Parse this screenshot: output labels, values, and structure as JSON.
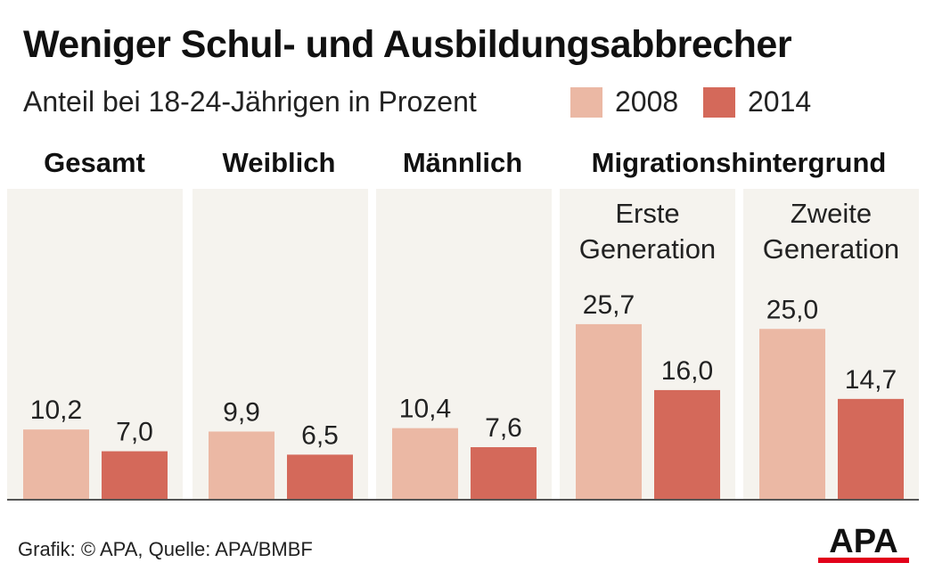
{
  "header": {
    "title": "Weniger Schul- und Ausbildungsabbrecher",
    "subtitle": "Anteil bei 18-24-Jährigen in Prozent"
  },
  "legend": [
    {
      "label": "2008",
      "color": "#ebb8a4"
    },
    {
      "label": "2014",
      "color": "#d4695a"
    }
  ],
  "footer": {
    "source": "Grafik: © APA, Quelle: APA/BMBF",
    "logo_text": "APA"
  },
  "colors": {
    "panel_bg": "#f5f3ee",
    "bar_2008": "#ebb8a4",
    "bar_2014": "#d4695a",
    "logo": "#111111",
    "logo_accent": "#e2001a"
  },
  "chart_data": {
    "type": "bar",
    "ylim": [
      0,
      30
    ],
    "series": [
      {
        "name": "2008",
        "values": [
          10.2,
          9.9,
          10.4,
          25.7,
          25.0
        ],
        "labels": [
          "10,2",
          "9,9",
          "10,4",
          "25,7",
          "25,0"
        ]
      },
      {
        "name": "2014",
        "values": [
          7.0,
          6.5,
          7.6,
          16.0,
          14.7
        ],
        "labels": [
          "7,0",
          "6,5",
          "7,6",
          "16,0",
          "14,7"
        ]
      }
    ],
    "categories": [
      "Gesamt",
      "Weiblich",
      "Männlich",
      "Erste Generation",
      "Zweite Generation"
    ],
    "group_headers": [
      "Gesamt",
      "Weiblich",
      "Männlich",
      "Migrationshintergrund"
    ],
    "subheaders": [
      [
        "Erste",
        "Generation"
      ],
      [
        "Zweite",
        "Generation"
      ]
    ]
  }
}
